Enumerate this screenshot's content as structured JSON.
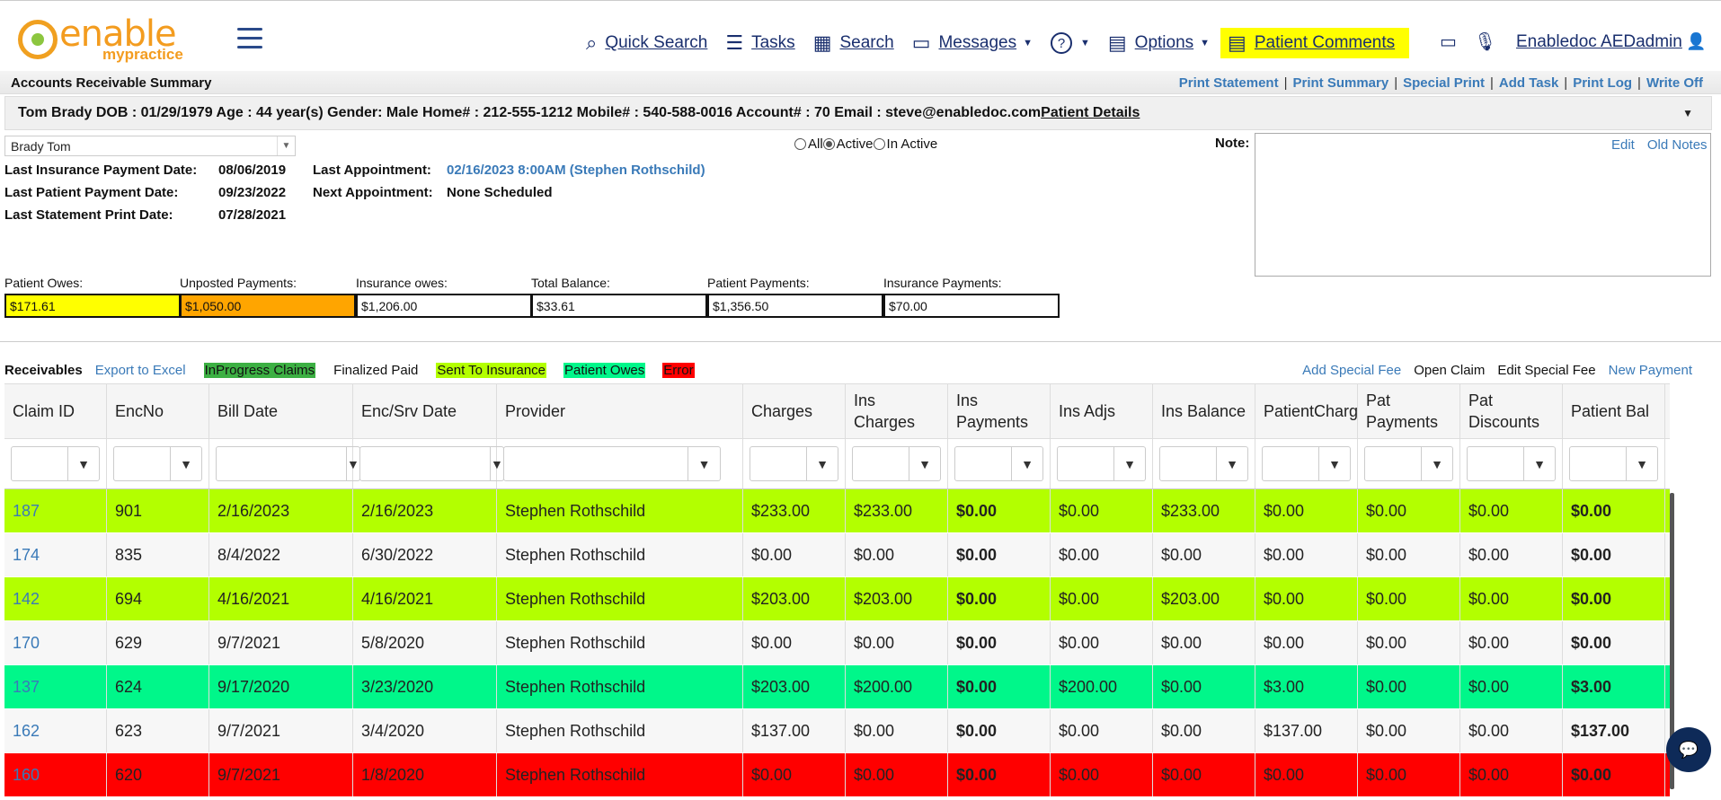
{
  "nav": {
    "logo_line1": "enable",
    "logo_line2": "mypractice",
    "items": [
      {
        "icon": "⌕",
        "label": "Quick Search",
        "caret": ""
      },
      {
        "icon": "☰",
        "label": "Tasks",
        "caret": ""
      },
      {
        "icon": "▦",
        "label": "Search",
        "caret": ""
      },
      {
        "icon": "▭",
        "label": "Messages",
        "caret": "▼"
      },
      {
        "icon": "?",
        "label": "",
        "caret": "▼"
      },
      {
        "icon": "▤",
        "label": "Options",
        "caret": "▼"
      }
    ],
    "highlight": {
      "icon": "▤",
      "label": "Patient Comments"
    },
    "video_icon": "▭",
    "mic_icon": "🎙",
    "user": "Enabledoc AEDadmin",
    "user_icon": "👤"
  },
  "ar": {
    "title": "Accounts Receivable Summary",
    "links": [
      "Print Statement",
      "Print Summary",
      "Special Print",
      "Add Task",
      "Print Log",
      "Write Off"
    ]
  },
  "patient": {
    "summary": "Tom Brady DOB : 01/29/1979 Age : 44 year(s) Gender: Male Home# : 212-555-1212 Mobile# : 540-588-0016 Account# : 70 Email : steve@enabledoc.com",
    "details_link": "Patient Details",
    "toggle": "▼",
    "select_value": "Brady Tom"
  },
  "filters": {
    "all": "All",
    "active": "Active",
    "inactive": "In Active"
  },
  "info": {
    "last_ins_pay_label": "Last Insurance Payment Date:",
    "last_ins_pay": "08/06/2019",
    "last_appt_label": "Last Appointment:",
    "last_appt": "02/16/2023 8:00AM (Stephen Rothschild)",
    "last_pat_pay_label": "Last Patient Payment Date:",
    "last_pat_pay": "09/23/2022",
    "next_appt_label": "Next Appointment:",
    "next_appt": "None Scheduled",
    "last_stmt_label": "Last Statement Print Date:",
    "last_stmt": "07/28/2021"
  },
  "note": {
    "label": "Note:",
    "edit": "Edit",
    "old": "Old Notes"
  },
  "summary": [
    {
      "label": "Patient Owes:",
      "value": "$171.61",
      "bg": "#ffff00"
    },
    {
      "label": "Unposted Payments:",
      "value": "$1,050.00",
      "bg": "#ffa500"
    },
    {
      "label": "Insurance owes:",
      "value": "$1,206.00",
      "bg": "#ffffff"
    },
    {
      "label": "Total Balance:",
      "value": "$33.61",
      "bg": "#ffffff"
    },
    {
      "label": "Patient Payments:",
      "value": "$1,356.50",
      "bg": "#ffffff"
    },
    {
      "label": "Insurance Payments:",
      "value": "$70.00",
      "bg": "#ffffff"
    }
  ],
  "legend": {
    "receivables": "Receivables",
    "export": "Export to Excel",
    "tags": [
      {
        "label": "InProgress Claims",
        "bg": "#3cb043"
      },
      {
        "label": "Finalized Paid",
        "bg": "#ffffff"
      },
      {
        "label": "Sent To Insurance",
        "bg": "#b3ff00"
      },
      {
        "label": "Patient Owes",
        "bg": "#00f78a"
      },
      {
        "label": "Error",
        "bg": "#ff0000"
      }
    ],
    "actions": [
      {
        "label": "Add Special Fee",
        "link": true
      },
      {
        "label": "Open Claim",
        "link": false
      },
      {
        "label": "Edit Special Fee",
        "link": false
      },
      {
        "label": "New Payment",
        "link": true
      }
    ]
  },
  "grid": {
    "columns": [
      "Claim ID",
      "EncNo",
      "Bill Date",
      "Enc/Srv Date",
      "Provider",
      "Charges",
      "Ins Charges",
      "Ins Payments",
      "Ins Adjs",
      "Ins Balance",
      "PatientCharge",
      "Pat Payments",
      "Pat Discounts",
      "Patient Bal"
    ],
    "rows": [
      {
        "bg": "#b3ff00",
        "cells": [
          "187",
          "901",
          "2/16/2023",
          "2/16/2023",
          "Stephen Rothschild",
          "$233.00",
          "$233.00",
          "$0.00",
          "$0.00",
          "$233.00",
          "$0.00",
          "$0.00",
          "$0.00",
          "$0.00"
        ]
      },
      {
        "bg": "#f7f7f7",
        "cells": [
          "174",
          "835",
          "8/4/2022",
          "6/30/2022",
          "Stephen Rothschild",
          "$0.00",
          "$0.00",
          "$0.00",
          "$0.00",
          "$0.00",
          "$0.00",
          "$0.00",
          "$0.00",
          "$0.00"
        ]
      },
      {
        "bg": "#b3ff00",
        "cells": [
          "142",
          "694",
          "4/16/2021",
          "4/16/2021",
          "Stephen Rothschild",
          "$203.00",
          "$203.00",
          "$0.00",
          "$0.00",
          "$203.00",
          "$0.00",
          "$0.00",
          "$0.00",
          "$0.00"
        ]
      },
      {
        "bg": "#f7f7f7",
        "cells": [
          "170",
          "629",
          "9/7/2021",
          "5/8/2020",
          "Stephen Rothschild",
          "$0.00",
          "$0.00",
          "$0.00",
          "$0.00",
          "$0.00",
          "$0.00",
          "$0.00",
          "$0.00",
          "$0.00"
        ]
      },
      {
        "bg": "#00f78a",
        "cells": [
          "137",
          "624",
          "9/17/2020",
          "3/23/2020",
          "Stephen Rothschild",
          "$203.00",
          "$200.00",
          "$0.00",
          "$200.00",
          "$0.00",
          "$3.00",
          "$0.00",
          "$0.00",
          "$3.00"
        ]
      },
      {
        "bg": "#f7f7f7",
        "cells": [
          "162",
          "623",
          "9/7/2021",
          "3/4/2020",
          "Stephen Rothschild",
          "$137.00",
          "$0.00",
          "$0.00",
          "$0.00",
          "$0.00",
          "$137.00",
          "$0.00",
          "$0.00",
          "$137.00"
        ]
      },
      {
        "bg": "#ff0000",
        "cells": [
          "160",
          "620",
          "9/7/2021",
          "1/8/2020",
          "Stephen Rothschild",
          "$0.00",
          "$0.00",
          "$0.00",
          "$0.00",
          "$0.00",
          "$0.00",
          "$0.00",
          "$0.00",
          "$0.00"
        ]
      }
    ],
    "filter_icon": "▼"
  },
  "chat_icon": "💬"
}
